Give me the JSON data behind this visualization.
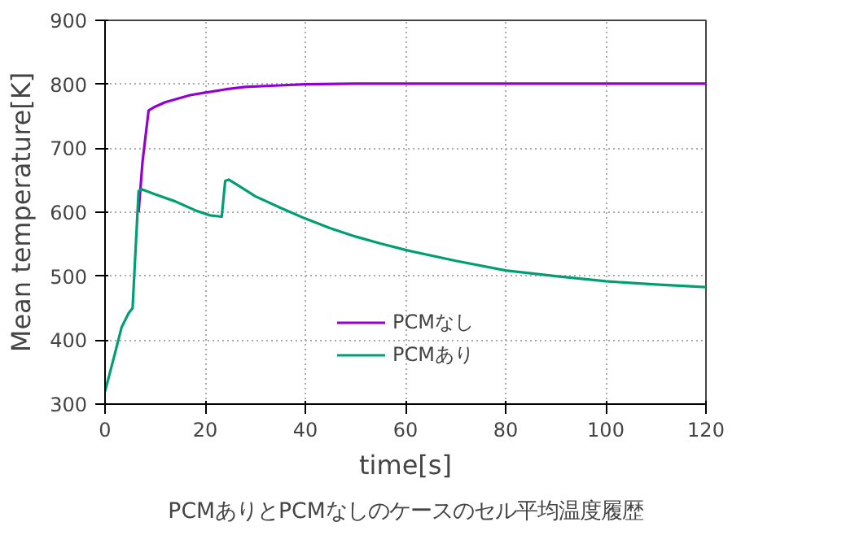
{
  "chart_data": {
    "type": "line",
    "xlabel": "time[s]",
    "ylabel": "Mean temperature[K]",
    "annotations": [
      "PCMありとPCMなしのケースのセル平均温度履歴"
    ],
    "xlim": [
      0,
      120
    ],
    "ylim": [
      300,
      900
    ],
    "xticks": [
      0,
      20,
      40,
      60,
      80,
      100,
      120
    ],
    "yticks": [
      300,
      400,
      500,
      600,
      700,
      800,
      900
    ],
    "grid": true,
    "legend": "bottom",
    "line_style": "solid",
    "marker": "none",
    "series": [
      {
        "name": "PCMなし",
        "color": "#9400d3",
        "x": [
          6.7,
          7.5,
          8.7,
          10,
          12,
          14.7,
          17,
          20,
          24,
          28,
          34,
          40,
          50,
          60,
          80,
          100,
          120
        ],
        "values": [
          600,
          680,
          759,
          765,
          772,
          778,
          783,
          787,
          792,
          796,
          798,
          800,
          801,
          801,
          801,
          801,
          801
        ]
      },
      {
        "name": "PCMあり",
        "color": "#009e73",
        "x": [
          0,
          2,
          3.3,
          4.7,
          5.5,
          6.7,
          7.3,
          10,
          14,
          18,
          21,
          23.3,
          24,
          24.7,
          27,
          30,
          35,
          40,
          45,
          50,
          55,
          60,
          70,
          80,
          90,
          100,
          110,
          120
        ],
        "values": [
          320,
          380,
          420,
          442,
          450,
          633,
          636,
          628,
          617,
          603,
          595,
          593,
          649,
          651,
          640,
          625,
          607,
          590,
          575,
          562,
          551,
          541,
          524,
          509,
          500,
          492,
          487,
          483
        ]
      }
    ]
  }
}
